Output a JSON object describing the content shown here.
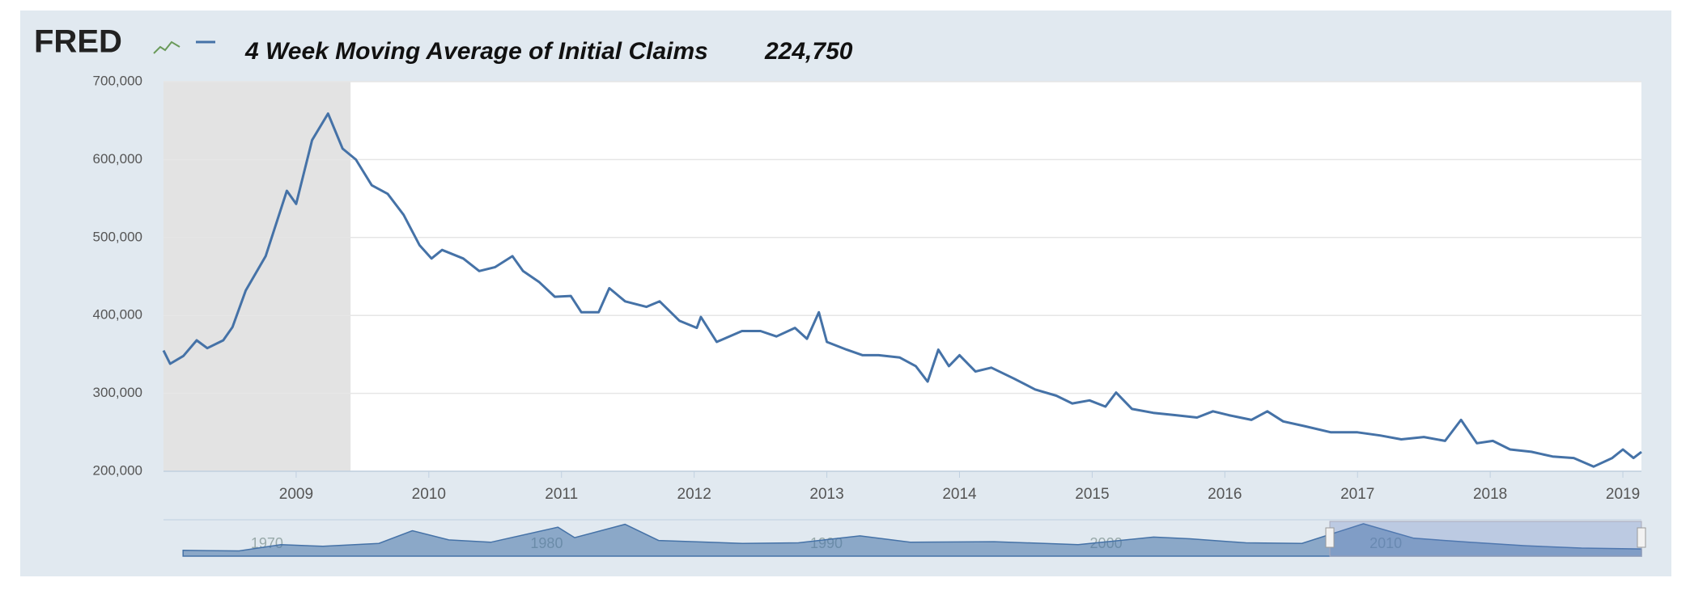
{
  "chart_data": {
    "type": "line",
    "logo": "FRED",
    "title": "4 Week Moving Average of Initial Claims",
    "latest": {
      "value": 224750,
      "label": "224,750"
    },
    "xlim": [
      2008.0,
      2019.14
    ],
    "xticks": [
      2009,
      2010,
      2011,
      2012,
      2013,
      2014,
      2015,
      2016,
      2017,
      2018,
      2019
    ],
    "ylim": [
      200000,
      700000
    ],
    "yticks": [
      {
        "value": 200000,
        "label": "200,000"
      },
      {
        "value": 300000,
        "label": "300,000"
      },
      {
        "value": 400000,
        "label": "400,000"
      },
      {
        "value": 500000,
        "label": "500,000"
      },
      {
        "value": 600000,
        "label": "600,000"
      },
      {
        "value": 700000,
        "label": "700,000"
      }
    ],
    "grid": true,
    "recession": [
      2008.0,
      2009.41
    ],
    "series": [
      {
        "color": "#4572a7",
        "x": [
          2008.0,
          2008.05,
          2008.15,
          2008.25,
          2008.33,
          2008.45,
          2008.52,
          2008.62,
          2008.77,
          2008.93,
          2009.0,
          2009.12,
          2009.24,
          2009.35,
          2009.45,
          2009.57,
          2009.69,
          2009.81,
          2009.93,
          2010.02,
          2010.1,
          2010.26,
          2010.38,
          2010.5,
          2010.63,
          2010.71,
          2010.83,
          2010.95,
          2011.07,
          2011.15,
          2011.28,
          2011.36,
          2011.48,
          2011.64,
          2011.74,
          2011.89,
          2012.02,
          2012.05,
          2012.17,
          2012.36,
          2012.5,
          2012.62,
          2012.76,
          2012.85,
          2012.94,
          2013.0,
          2013.15,
          2013.27,
          2013.39,
          2013.55,
          2013.67,
          2013.76,
          2013.84,
          2013.92,
          2014.0,
          2014.12,
          2014.24,
          2014.41,
          2014.57,
          2014.73,
          2014.85,
          2014.98,
          2015.1,
          2015.18,
          2015.3,
          2015.46,
          2015.63,
          2015.79,
          2015.91,
          2016.03,
          2016.2,
          2016.32,
          2016.44,
          2016.6,
          2016.8,
          2017.0,
          2017.17,
          2017.33,
          2017.5,
          2017.66,
          2017.78,
          2017.9,
          2018.02,
          2018.15,
          2018.31,
          2018.47,
          2018.63,
          2018.78,
          2018.92,
          2019.0,
          2019.08,
          2019.14
        ],
        "values": [
          355000,
          338000,
          348000,
          368000,
          358000,
          368000,
          385000,
          432000,
          476000,
          560000,
          543000,
          625000,
          659000,
          614000,
          600000,
          567000,
          556000,
          529000,
          490000,
          473000,
          484000,
          473000,
          457000,
          462000,
          476000,
          457000,
          443000,
          424000,
          425000,
          404000,
          404000,
          435000,
          418000,
          411000,
          418000,
          393000,
          384000,
          398000,
          366000,
          380000,
          380000,
          373000,
          384000,
          370000,
          404000,
          366000,
          356000,
          349000,
          349000,
          346000,
          335000,
          315000,
          356000,
          335000,
          349000,
          328000,
          333000,
          319000,
          305000,
          297000,
          287000,
          291000,
          283000,
          301000,
          280000,
          275000,
          272000,
          269000,
          277000,
          272000,
          266000,
          277000,
          264000,
          258000,
          250000,
          250000,
          246000,
          241000,
          244000,
          239000,
          266000,
          236000,
          239000,
          228000,
          225000,
          219000,
          217000,
          206000,
          217000,
          228000,
          217000,
          224750
        ]
      }
    ],
    "navigator": {
      "xlim": [
        1966.3,
        2019.14
      ],
      "ylim": [
        100000,
        700000
      ],
      "xticks": [
        1970,
        1980,
        1990,
        2000,
        2010
      ],
      "selection": [
        2008.0,
        2019.14
      ],
      "x": [
        1967,
        1969,
        1970.5,
        1972,
        1974,
        1975.2,
        1976.5,
        1978,
        1980.4,
        1981,
        1982.8,
        1984,
        1987,
        1989,
        1991.2,
        1993,
        1996,
        1999,
        2001.7,
        2003,
        2005,
        2007,
        2009.2,
        2011,
        2013,
        2015,
        2017,
        2019.14
      ],
      "values": [
        200000,
        190000,
        300000,
        270000,
        320000,
        540000,
        380000,
        340000,
        600000,
        420000,
        650000,
        370000,
        320000,
        330000,
        450000,
        340000,
        350000,
        300000,
        430000,
        400000,
        330000,
        320000,
        660000,
        410000,
        340000,
        280000,
        240000,
        224750
      ]
    }
  }
}
